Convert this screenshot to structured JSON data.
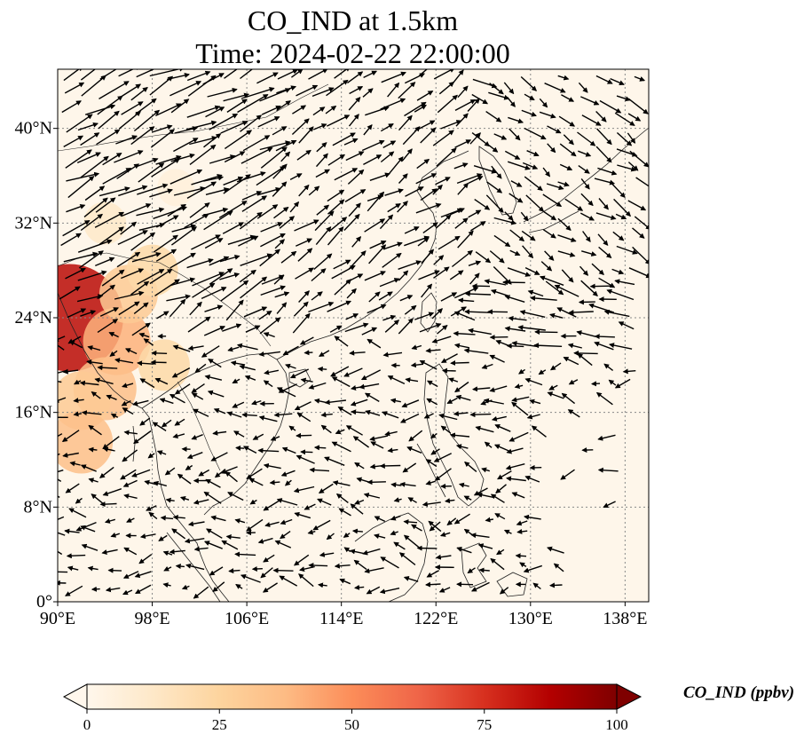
{
  "title": {
    "line1": "CO_IND at 1.5km",
    "line2": "Time: 2024-02-22 22:00:00"
  },
  "map": {
    "lon_ticks": [
      "90°E",
      "98°E",
      "106°E",
      "114°E",
      "122°E",
      "130°E",
      "138°E"
    ],
    "lat_ticks": [
      "0°",
      "8°N",
      "16°N",
      "24°N",
      "32°N",
      "40°N"
    ],
    "lon_range": [
      90,
      140
    ],
    "lat_range": [
      0,
      45
    ],
    "gridlines": "dotted"
  },
  "colorbar": {
    "label": "CO_IND (ppbv)",
    "ticks": [
      "0",
      "25",
      "50",
      "75",
      "100"
    ],
    "range": [
      0,
      100
    ],
    "extend": "both",
    "cmap": "OrRd",
    "colors": [
      "#fff7ec",
      "#fee8c8",
      "#fdd49e",
      "#fdbb84",
      "#fc8d59",
      "#ef6548",
      "#d7301f",
      "#b30000",
      "#7f0000"
    ]
  },
  "concentration_patches": [
    {
      "lon": 91,
      "lat": 24,
      "value": 85
    },
    {
      "lon": 95,
      "lat": 22,
      "value": 40
    },
    {
      "lon": 96,
      "lat": 26,
      "value": 30
    },
    {
      "lon": 94,
      "lat": 18,
      "value": 35
    },
    {
      "lon": 92,
      "lat": 17,
      "value": 30
    },
    {
      "lon": 92,
      "lat": 13.5,
      "value": 35
    },
    {
      "lon": 98,
      "lat": 28,
      "value": 22
    },
    {
      "lon": 99,
      "lat": 20,
      "value": 22
    },
    {
      "lon": 94,
      "lat": 32,
      "value": 12
    },
    {
      "lon": 100,
      "lat": 35,
      "value": 6
    }
  ]
}
